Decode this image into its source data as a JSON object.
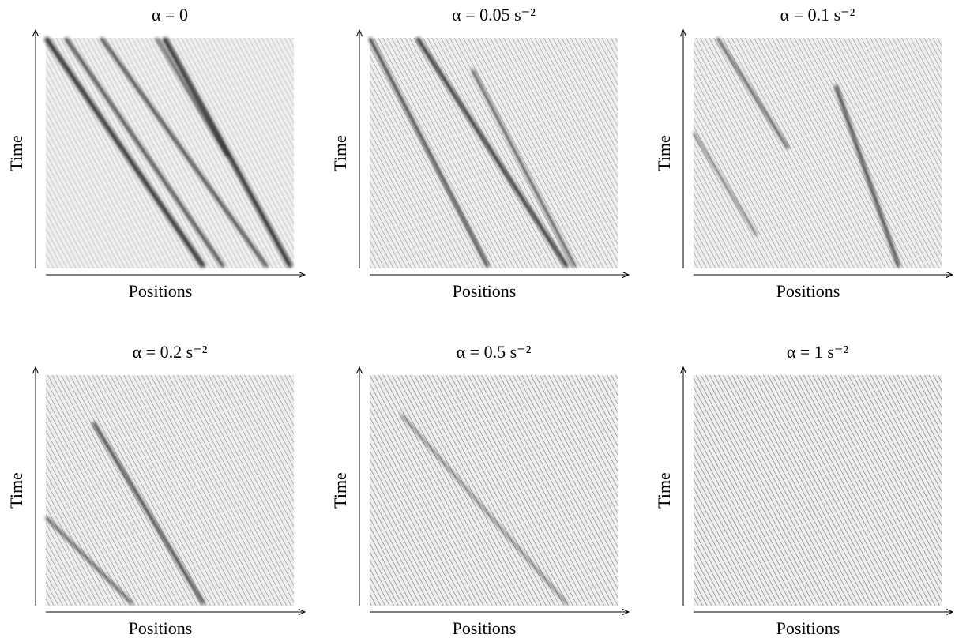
{
  "panels": [
    {
      "title": "α = 0",
      "xlabel": "Positions",
      "ylabel": "Time"
    },
    {
      "title": "α = 0.05 s⁻²",
      "xlabel": "Positions",
      "ylabel": "Time"
    },
    {
      "title": "α = 0.1 s⁻²",
      "xlabel": "Positions",
      "ylabel": "Time"
    },
    {
      "title": "α = 0.2 s⁻²",
      "xlabel": "Positions",
      "ylabel": "Time"
    },
    {
      "title": "α = 0.5 s⁻²",
      "xlabel": "Positions",
      "ylabel": "Time"
    },
    {
      "title": "α = 1 s⁻²",
      "xlabel": "Positions",
      "ylabel": "Time"
    }
  ]
}
